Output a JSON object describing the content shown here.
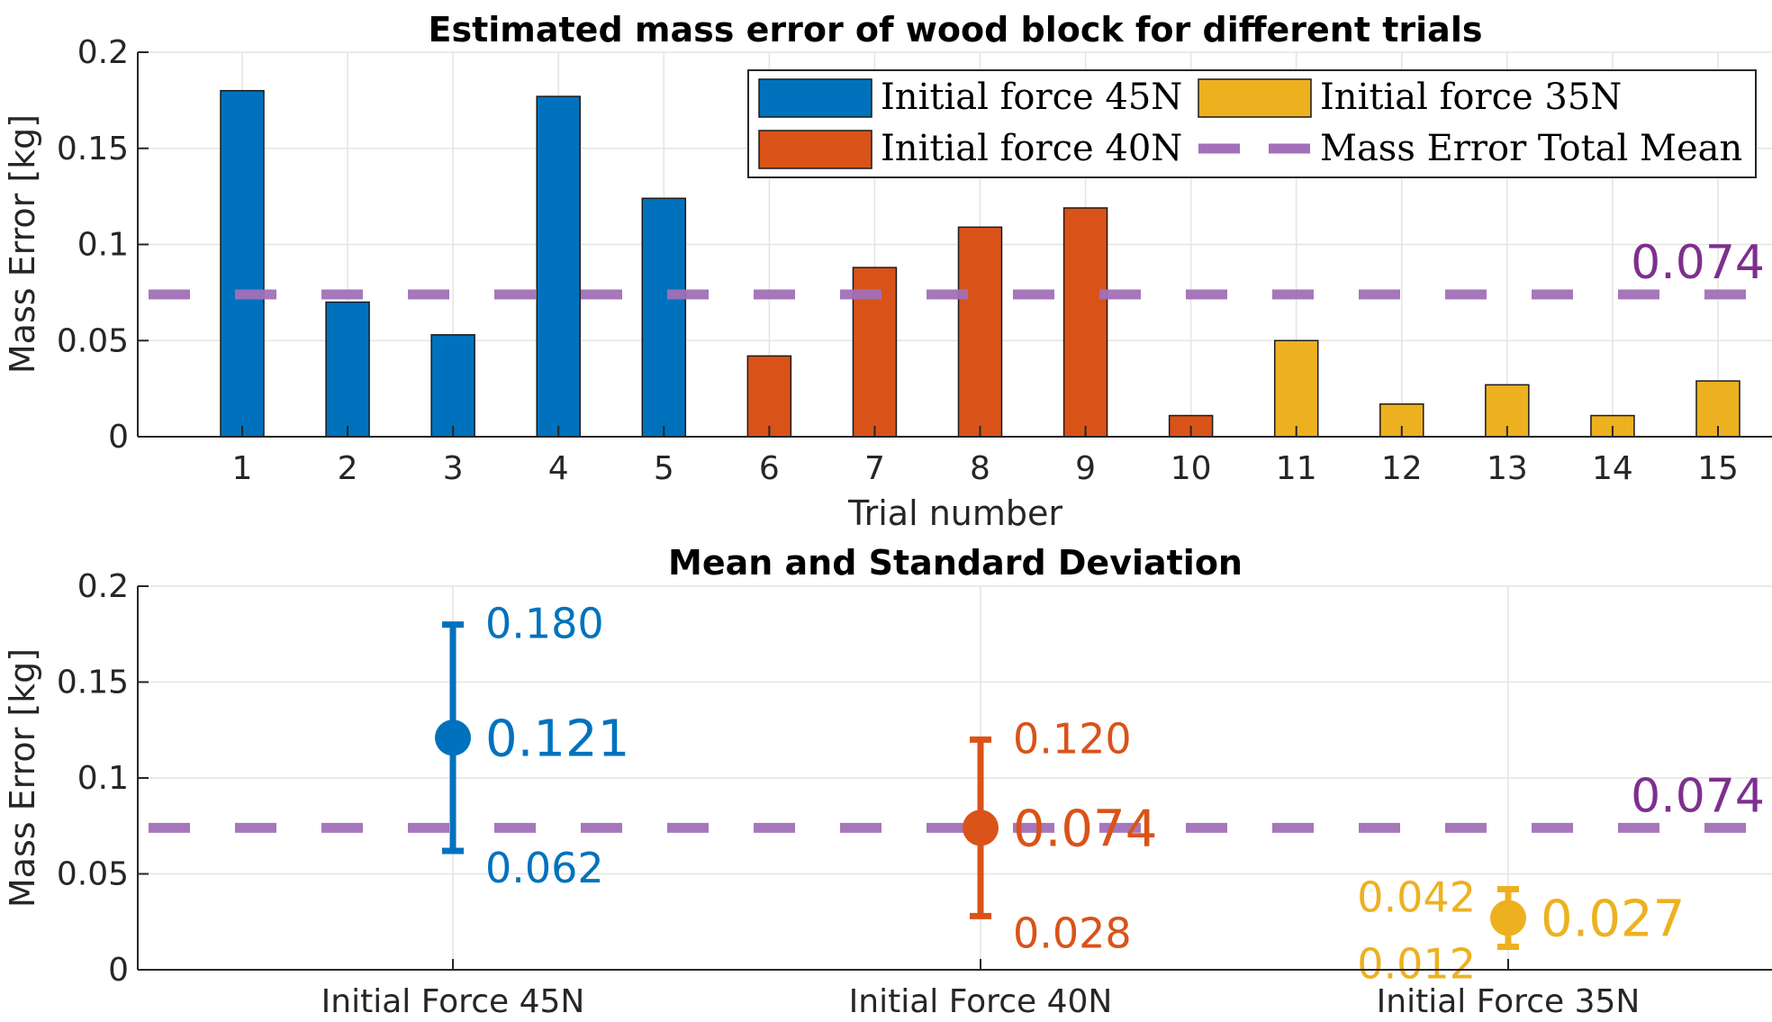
{
  "chart_data": [
    {
      "type": "bar",
      "title": "Estimated mass error of wood block for different trials",
      "xlabel": "Trial number",
      "ylabel": "Mass Error [kg]",
      "ylim": [
        0,
        0.2
      ],
      "yticks": [
        0,
        0.05,
        0.1,
        0.15,
        0.2
      ],
      "ytick_labels": [
        "0",
        "0.05",
        "0.1",
        "0.15",
        "0.2"
      ],
      "categories": [
        "1",
        "2",
        "3",
        "4",
        "5",
        "6",
        "7",
        "8",
        "9",
        "10",
        "11",
        "12",
        "13",
        "14",
        "15"
      ],
      "grid": true,
      "legend_position": "top-right",
      "series": [
        {
          "name": "Initial force 45N",
          "color": "#0072BD",
          "x": [
            1,
            2,
            3,
            4,
            5
          ],
          "values": [
            0.18,
            0.07,
            0.053,
            0.177,
            0.124
          ]
        },
        {
          "name": "Initial force 40N",
          "color": "#D95319",
          "x": [
            6,
            7,
            8,
            9,
            10
          ],
          "values": [
            0.042,
            0.088,
            0.109,
            0.119,
            0.011
          ]
        },
        {
          "name": "Initial force 35N",
          "color": "#EDB120",
          "x": [
            11,
            12,
            13,
            14,
            15
          ],
          "values": [
            0.05,
            0.017,
            0.027,
            0.011,
            0.029
          ]
        }
      ],
      "mean_line": {
        "name": "Mass Error Total Mean",
        "value": 0.074,
        "label": "0.074",
        "color": "#A270B8",
        "label_color": "#7E2F8E"
      }
    },
    {
      "type": "errorbar",
      "title": "Mean and Standard Deviation",
      "ylabel": "Mass Error [kg]",
      "ylim": [
        0,
        0.2
      ],
      "yticks": [
        0,
        0.05,
        0.1,
        0.15,
        0.2
      ],
      "ytick_labels": [
        "0",
        "0.05",
        "0.1",
        "0.15",
        "0.2"
      ],
      "categories": [
        "Initial Force 45N",
        "Initial Force 40N",
        "Initial Force 35N"
      ],
      "grid": true,
      "points": [
        {
          "category": "Initial Force 45N",
          "color": "#0072BD",
          "mean": 0.121,
          "upper": 0.18,
          "lower": 0.062,
          "mean_label": "0.121",
          "upper_label": "0.180",
          "lower_label": "0.062"
        },
        {
          "category": "Initial Force 40N",
          "color": "#D95319",
          "mean": 0.074,
          "upper": 0.12,
          "lower": 0.028,
          "mean_label": "0.074",
          "upper_label": "0.120",
          "lower_label": "0.028"
        },
        {
          "category": "Initial Force 35N",
          "color": "#EDB120",
          "mean": 0.027,
          "upper": 0.042,
          "lower": 0.012,
          "mean_label": "0.027",
          "upper_label": "0.042",
          "lower_label": "0.012"
        }
      ],
      "mean_line": {
        "value": 0.074,
        "label": "0.074",
        "color": "#A270B8",
        "label_color": "#7E2F8E"
      }
    }
  ]
}
